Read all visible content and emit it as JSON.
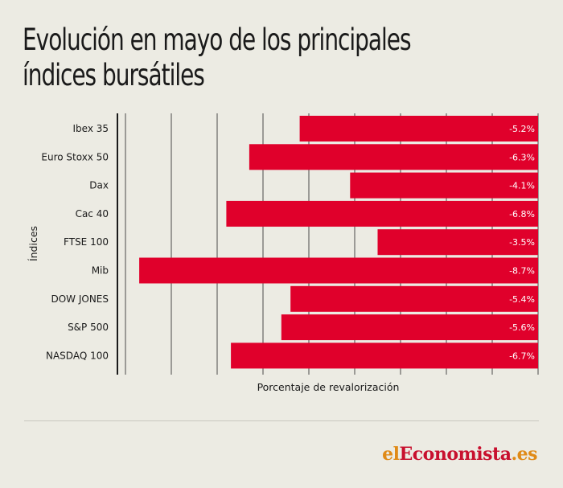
{
  "title": "Evolución en mayo de los principales índices bursátiles",
  "logo": {
    "part1": "el",
    "part2": "Economista",
    "part3": ".es"
  },
  "chart_data": {
    "type": "bar",
    "orientation": "horizontal",
    "categories": [
      "Ibex 35",
      "Euro Stoxx 50",
      "Dax",
      "Cac 40",
      "FTSE 100",
      "Mib",
      "DOW JONES",
      "S&P 500",
      "NASDAQ 100"
    ],
    "values": [
      -5.2,
      -6.3,
      -4.1,
      -6.8,
      -3.5,
      -8.7,
      -5.4,
      -5.6,
      -6.7
    ],
    "value_labels": [
      "-5.2%",
      "-6.3%",
      "-4.1%",
      "-6.8%",
      "-3.5%",
      "-8.7%",
      "-5.4%",
      "-5.6%",
      "-6.7%"
    ],
    "xlabel": "Porcentaje de revalorización",
    "ylabel": "Índices",
    "xlim": [
      -9,
      0
    ],
    "grid": true,
    "bar_color": "#e0002b"
  }
}
